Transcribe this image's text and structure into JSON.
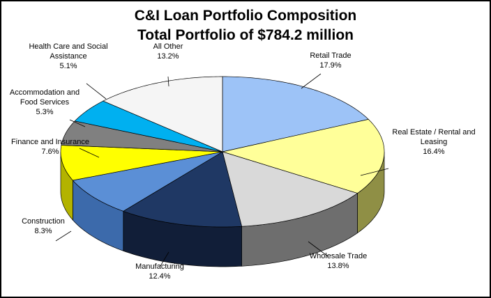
{
  "chart_data": {
    "type": "pie",
    "title": "C&I Loan Portfolio Composition",
    "subtitle": "Total Portfolio of $784.2 million",
    "slices": [
      {
        "name": "Retail Trade",
        "value": 17.9,
        "label": "17.9%",
        "color": "#9dc3f7",
        "dark": "#6d8fbd"
      },
      {
        "name": "Real Estate / Rental and Leasing",
        "value": 16.4,
        "label": "16.4%",
        "color": "#ffff99",
        "dark": "#8f8f45"
      },
      {
        "name": "Wholesale Trade",
        "value": 13.8,
        "label": "13.8%",
        "color": "#d9d9d9",
        "dark": "#6e6e6e"
      },
      {
        "name": "Manufacturing",
        "value": 12.4,
        "label": "12.4%",
        "color": "#1f3864",
        "dark": "#111e38"
      },
      {
        "name": "Construction",
        "value": 8.3,
        "label": "8.3%",
        "color": "#5b8fd6",
        "dark": "#3c6aab"
      },
      {
        "name": "Finance and Insurance",
        "value": 7.6,
        "label": "7.6%",
        "color": "#ffff00",
        "dark": "#b3b300"
      },
      {
        "name": "Accommodation and Food Services",
        "value": 5.3,
        "label": "5.3%",
        "color": "#808080",
        "dark": "#555555"
      },
      {
        "name": "Health Care and Social Assistance",
        "value": 5.1,
        "label": "5.1%",
        "color": "#00b0f0",
        "dark": "#0080b0"
      },
      {
        "name": "All Other",
        "value": 13.2,
        "label": "13.2%",
        "color": "#f5f5f5",
        "dark": "#bbbbbb"
      }
    ],
    "legend": "none",
    "view": "3d-perspective"
  }
}
